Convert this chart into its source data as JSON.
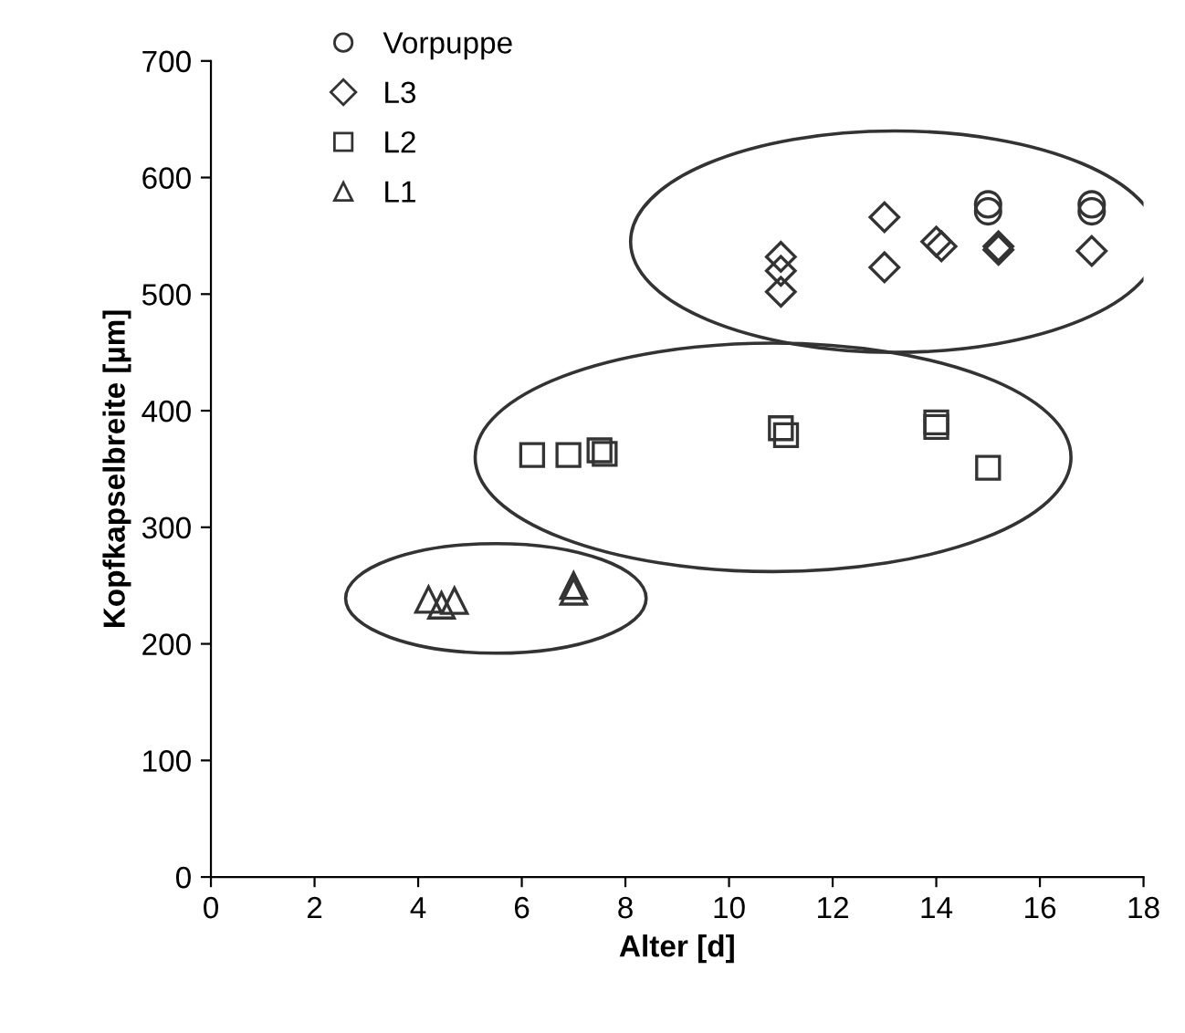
{
  "chart_data": {
    "type": "scatter",
    "xlabel": "Alter [d]",
    "ylabel": "Kopfkapselbreite [µm]",
    "xlim": [
      0,
      18
    ],
    "xticks": [
      0,
      2,
      4,
      6,
      8,
      10,
      12,
      14,
      16,
      18
    ],
    "ylim": [
      0,
      700
    ],
    "yticks": [
      0,
      100,
      200,
      300,
      400,
      500,
      600,
      700
    ],
    "grid": false,
    "legend": "top left",
    "series": [
      {
        "name": "Vorpuppe",
        "color": "#333333",
        "marker": "circle",
        "x": [
          15,
          15,
          17,
          17
        ],
        "values": [
          577,
          571,
          577,
          571
        ]
      },
      {
        "name": "L3",
        "color": "#333333",
        "marker": "diamond",
        "x": [
          11,
          11,
          11,
          13,
          13,
          14,
          14.1,
          15.2,
          15.2,
          17
        ],
        "values": [
          532,
          520,
          502,
          566,
          523,
          545,
          541,
          541,
          538,
          537
        ]
      },
      {
        "name": "L2",
        "color": "#333333",
        "marker": "square",
        "x": [
          6.2,
          6.9,
          7.5,
          7.6,
          11,
          11.1,
          14,
          14,
          15
        ],
        "values": [
          362,
          362,
          366,
          363,
          385,
          379,
          390,
          386,
          351
        ]
      },
      {
        "name": "L1",
        "color": "#333333",
        "marker": "triangle",
        "x": [
          4.2,
          4.45,
          4.7,
          7,
          7
        ],
        "values": [
          238,
          233,
          237,
          250,
          245
        ]
      }
    ]
  }
}
